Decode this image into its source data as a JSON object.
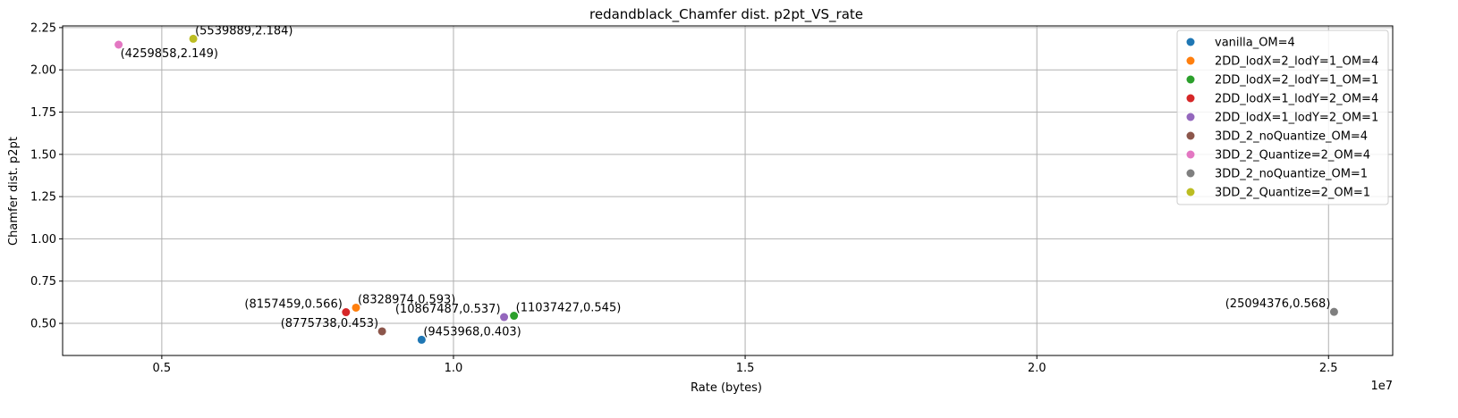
{
  "chart_data": {
    "type": "scatter",
    "title": "redandblack_Chamfer dist. p2pt_VS_rate",
    "xlabel": "Rate (bytes)",
    "ylabel": "Chamfer dist. p2pt",
    "x_scale_label": "1e7",
    "xlim": [
      3300000,
      26100000
    ],
    "ylim": [
      0.31,
      2.26
    ],
    "x_ticks": [
      5000000,
      10000000,
      15000000,
      20000000,
      25000000
    ],
    "x_tick_labels": [
      "0.5",
      "1.0",
      "1.5",
      "2.0",
      "2.5"
    ],
    "y_ticks": [
      0.5,
      0.75,
      1.0,
      1.25,
      1.5,
      1.75,
      2.0,
      2.25
    ],
    "y_tick_labels": [
      "0.50",
      "0.75",
      "1.00",
      "1.25",
      "1.50",
      "1.75",
      "2.00",
      "2.25"
    ],
    "grid": true,
    "legend_position": "top-right",
    "series": [
      {
        "name": "vanilla_OM=4",
        "color": "#1f77b4",
        "x": 9453968,
        "y": 0.403,
        "annotation": "(9453968,0.403)"
      },
      {
        "name": "2DD_lodX=2_lodY=1_OM=4",
        "color": "#ff7f0e",
        "x": 8328974,
        "y": 0.593,
        "annotation": "(8328974,0.593)"
      },
      {
        "name": "2DD_lodX=2_lodY=1_OM=1",
        "color": "#2ca02c",
        "x": 11037427,
        "y": 0.545,
        "annotation": "(11037427,0.545)"
      },
      {
        "name": "2DD_lodX=1_lodY=2_OM=4",
        "color": "#d62728",
        "x": 8157459,
        "y": 0.566,
        "annotation": "(8157459,0.566)"
      },
      {
        "name": "2DD_lodX=1_lodY=2_OM=1",
        "color": "#9467bd",
        "x": 10867487,
        "y": 0.537,
        "annotation": "(10867487,0.537)"
      },
      {
        "name": "3DD_2_noQuantize_OM=4",
        "color": "#8c564b",
        "x": 8775738,
        "y": 0.453,
        "annotation": "(8775738,0.453)"
      },
      {
        "name": "3DD_2_Quantize=2_OM=4",
        "color": "#e377c2",
        "x": 4259858,
        "y": 2.149,
        "annotation": "(4259858,2.149)"
      },
      {
        "name": "3DD_2_noQuantize_OM=1",
        "color": "#7f7f7f",
        "x": 25094376,
        "y": 0.568,
        "annotation": "(25094376,0.568)"
      },
      {
        "name": "3DD_2_Quantize=2_OM=1",
        "color": "#bcbd22",
        "x": 5539889,
        "y": 2.184,
        "annotation": "(5539889,2.184)"
      }
    ]
  }
}
